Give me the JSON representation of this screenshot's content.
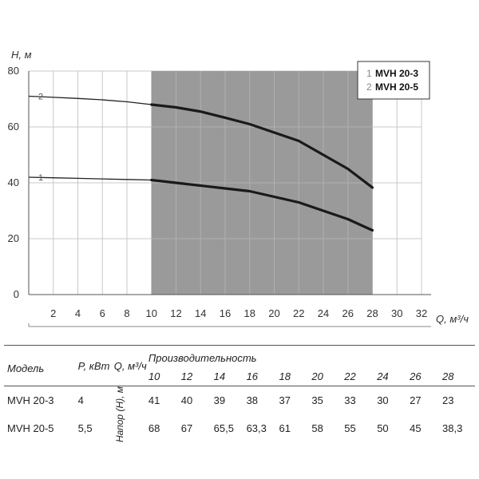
{
  "chart_data": {
    "type": "line",
    "ylabel": "H, м",
    "xlabel": "Q, м³/ч",
    "xlim": [
      0,
      32
    ],
    "ylim": [
      0,
      80
    ],
    "x_ticks": [
      2,
      4,
      6,
      8,
      10,
      12,
      14,
      16,
      18,
      20,
      22,
      24,
      26,
      28,
      30,
      32
    ],
    "y_ticks": [
      0,
      20,
      40,
      60,
      80
    ],
    "grid": true,
    "shaded_range": [
      10,
      28
    ],
    "legend_position": "top-right",
    "legend": [
      {
        "num": "1",
        "name": "MVH 20-3"
      },
      {
        "num": "2",
        "name": "MVH 20-5"
      }
    ],
    "series": [
      {
        "name": "MVH 20-3",
        "label": "1",
        "x": [
          0,
          2,
          4,
          6,
          8,
          10,
          12,
          14,
          16,
          18,
          20,
          22,
          24,
          26,
          28
        ],
        "values": [
          42,
          41.8,
          41.6,
          41.4,
          41.2,
          41,
          40,
          39,
          38,
          37,
          35,
          33,
          30,
          27,
          23
        ]
      },
      {
        "name": "MVH 20-5",
        "label": "2",
        "x": [
          0,
          2,
          4,
          6,
          8,
          10,
          12,
          14,
          16,
          18,
          20,
          22,
          24,
          26,
          28
        ],
        "values": [
          71,
          70.6,
          70.2,
          69.7,
          69,
          68,
          67,
          65.5,
          63.3,
          61,
          58,
          55,
          50,
          45,
          38.3
        ]
      }
    ]
  },
  "table": {
    "header": {
      "model": "Модель",
      "power": "P, кВт",
      "flow": "Q, м³/ч",
      "capacity": "Производительность",
      "flows": [
        "10",
        "12",
        "14",
        "16",
        "18",
        "20",
        "22",
        "24",
        "26",
        "28"
      ]
    },
    "head_label": "Напор (H), м",
    "rows": [
      {
        "model": "MVH 20-3",
        "power": "4",
        "values": [
          "41",
          "40",
          "39",
          "38",
          "37",
          "35",
          "33",
          "30",
          "27",
          "23"
        ]
      },
      {
        "model": "MVH 20-5",
        "power": "5,5",
        "values": [
          "68",
          "67",
          "65,5",
          "63,3",
          "61",
          "58",
          "55",
          "50",
          "45",
          "38,3"
        ]
      }
    ]
  }
}
